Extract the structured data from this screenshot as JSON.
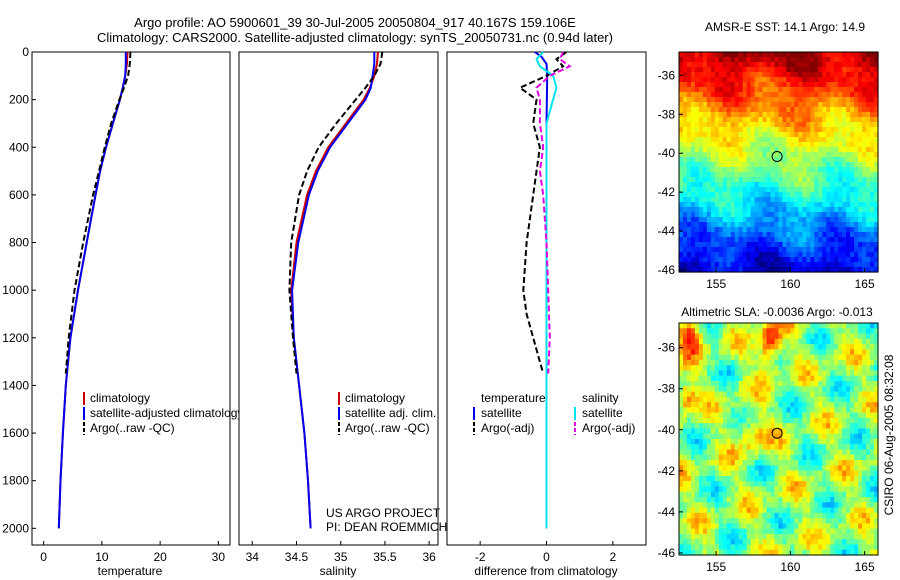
{
  "header": {
    "line1": "Argo profile: AO 5900601_39 30-Jul-2005 20050804_917 40.167S 159.106E",
    "line2": "Climatology: CARS2000. Satellite-adjusted climatology: synTS_20050731.nc (0.94d later)"
  },
  "side_label": "CSIRO 06-Aug-2005 08:32:08",
  "credit": {
    "line1": "US ARGO PROJECT",
    "line2": "PI: DEAN ROEMMICH"
  },
  "colors": {
    "climatology": "#cc0000",
    "satellite": "#0000ee",
    "argo": "#000000",
    "diff_temp_sat": "#0000ee",
    "diff_temp_argo": "#000000",
    "diff_sal_sat": "#00e5ee",
    "diff_sal_argo": "#e000e0"
  },
  "chart_data": [
    {
      "type": "line",
      "id": "temperature",
      "xlabel": "temperature",
      "ylim": [
        2070,
        0
      ],
      "xlim": [
        -2,
        32
      ],
      "xticks": [
        0,
        10,
        20,
        30
      ],
      "yticks": [
        0,
        200,
        400,
        600,
        800,
        1000,
        1200,
        1400,
        1600,
        1800,
        2000
      ],
      "legend": {
        "placement": "lower-right",
        "entries": [
          "climatology",
          "satellite-adjusted climatology",
          "Argo(..raw -QC)"
        ]
      },
      "series": [
        {
          "name": "climatology",
          "color": "#cc0000",
          "dash": false,
          "depth": [
            0,
            50,
            100,
            150,
            200,
            300,
            400,
            500,
            600,
            800,
            1000,
            1200,
            1400,
            1600,
            1800,
            2000
          ],
          "values": [
            14.4,
            14.3,
            14.0,
            13.6,
            13.1,
            11.9,
            10.7,
            9.7,
            8.9,
            7.4,
            5.9,
            4.6,
            3.8,
            3.3,
            2.9,
            2.6
          ]
        },
        {
          "name": "satellite-adjusted climatology",
          "color": "#0000ee",
          "dash": false,
          "depth": [
            0,
            50,
            100,
            150,
            200,
            300,
            400,
            500,
            600,
            800,
            1000,
            1200,
            1400,
            1600,
            1800,
            2000
          ],
          "values": [
            14.1,
            14.1,
            14.0,
            13.6,
            13.1,
            11.9,
            10.7,
            9.7,
            8.9,
            7.4,
            5.9,
            4.6,
            3.8,
            3.3,
            2.9,
            2.6
          ]
        },
        {
          "name": "Argo(..raw -QC)",
          "color": "#000000",
          "dash": true,
          "depth": [
            0,
            50,
            100,
            150,
            200,
            300,
            400,
            500,
            600,
            800,
            1000,
            1200,
            1350
          ],
          "values": [
            14.9,
            14.8,
            14.5,
            13.8,
            13.0,
            11.6,
            10.5,
            9.5,
            8.5,
            6.8,
            5.3,
            4.3,
            3.8
          ]
        }
      ]
    },
    {
      "type": "line",
      "id": "salinity",
      "xlabel": "salinity",
      "ylim": [
        2070,
        0
      ],
      "xlim": [
        33.85,
        36.1
      ],
      "xticks": [
        34,
        34.5,
        35,
        35.5,
        36
      ],
      "xticklabels": [
        "34",
        "34.5",
        "35",
        "35.5",
        "36"
      ],
      "legend": {
        "placement": "lower-right",
        "entries": [
          "climatology",
          "satellite adj. clim.",
          "Argo(..raw -QC)"
        ]
      },
      "series": [
        {
          "name": "climatology",
          "color": "#cc0000",
          "dash": false,
          "depth": [
            0,
            50,
            100,
            150,
            200,
            300,
            400,
            500,
            600,
            800,
            1000,
            1200,
            1400,
            1600,
            1800,
            2000
          ],
          "values": [
            35.42,
            35.41,
            35.38,
            35.33,
            35.26,
            35.06,
            34.86,
            34.72,
            34.62,
            34.5,
            34.44,
            34.47,
            34.53,
            34.59,
            34.63,
            34.66
          ]
        },
        {
          "name": "satellite adj. clim.",
          "color": "#0000ee",
          "dash": false,
          "depth": [
            0,
            50,
            100,
            150,
            200,
            300,
            400,
            500,
            600,
            800,
            1000,
            1200,
            1400,
            1600,
            1800,
            2000
          ],
          "values": [
            35.38,
            35.38,
            35.36,
            35.34,
            35.28,
            35.08,
            34.88,
            34.74,
            34.64,
            34.52,
            34.45,
            34.47,
            34.53,
            34.59,
            34.63,
            34.66
          ]
        },
        {
          "name": "Argo(..raw -QC)",
          "color": "#000000",
          "dash": true,
          "depth": [
            0,
            50,
            100,
            150,
            200,
            300,
            400,
            500,
            600,
            800,
            1000,
            1200,
            1350
          ],
          "values": [
            35.47,
            35.45,
            35.38,
            35.28,
            35.17,
            34.95,
            34.75,
            34.62,
            34.53,
            34.44,
            34.42,
            34.46,
            34.5
          ]
        }
      ]
    },
    {
      "type": "line",
      "id": "difference",
      "xlabel": "difference from climatology",
      "ylim": [
        2070,
        0
      ],
      "xlim": [
        -3.0,
        3.0
      ],
      "xticks": [
        -2,
        0,
        2
      ],
      "legend": {
        "placement": "lower-right",
        "headers": [
          "temperature",
          "salinity"
        ],
        "entries": [
          "satellite",
          "Argo(-adj)",
          "satellite",
          "Argo(-adj)"
        ]
      },
      "series": [
        {
          "name": "satellite",
          "group": "temperature",
          "color": "#0000ee",
          "dash": false,
          "depth": [
            0,
            20,
            50,
            100,
            300,
            500,
            1000,
            1500,
            2000
          ],
          "values": [
            -0.35,
            -0.15,
            0.0,
            0.02,
            0.0,
            0.0,
            0.0,
            0.0,
            0.0
          ]
        },
        {
          "name": "Argo(-adj)",
          "group": "temperature",
          "color": "#000000",
          "dash": true,
          "depth": [
            0,
            30,
            60,
            100,
            150,
            200,
            300,
            400,
            500,
            600,
            800,
            1000,
            1100,
            1200,
            1350
          ],
          "values": [
            0.6,
            0.3,
            0.5,
            0.0,
            -0.8,
            -0.3,
            -0.4,
            -0.2,
            -0.3,
            -0.4,
            -0.6,
            -0.7,
            -0.6,
            -0.4,
            -0.1
          ]
        },
        {
          "name": "satellite",
          "group": "salinity",
          "color": "#00e5ee",
          "dash": false,
          "depth": [
            0,
            30,
            60,
            100,
            150,
            200,
            300,
            500,
            1000,
            1500,
            2000
          ],
          "values": [
            -0.1,
            -0.3,
            -0.2,
            0.2,
            0.3,
            0.2,
            0.0,
            0.0,
            0.0,
            0.0,
            0.0
          ]
        },
        {
          "name": "Argo(-adj)",
          "group": "salinity",
          "color": "#e000e0",
          "dash": true,
          "depth": [
            0,
            30,
            60,
            100,
            150,
            200,
            300,
            400,
            500,
            600,
            800,
            1000,
            1200,
            1350
          ],
          "values": [
            0.5,
            0.4,
            0.7,
            0.1,
            -0.3,
            -0.2,
            -0.2,
            -0.1,
            -0.2,
            -0.1,
            0.0,
            0.05,
            0.1,
            0.05
          ]
        }
      ]
    },
    {
      "type": "heatmap",
      "id": "sst_map",
      "title": "AMSR-E SST: 14.1 Argo: 14.9",
      "xlim": [
        152.5,
        165.9
      ],
      "ylim": [
        -46.1,
        -34.8
      ],
      "xticks": [
        155,
        160,
        165
      ],
      "yticks": [
        -36,
        -38,
        -40,
        -42,
        -44,
        -46
      ],
      "marker": {
        "lon": 159.106,
        "lat": -40.167
      }
    },
    {
      "type": "heatmap",
      "id": "sla_map",
      "title": "Altimetric SLA: -0.0036 Argo: -0.013",
      "xlim": [
        152.5,
        165.9
      ],
      "ylim": [
        -46.1,
        -34.8
      ],
      "xticks": [
        155,
        160,
        165
      ],
      "yticks": [
        -36,
        -38,
        -40,
        -42,
        -44,
        -46
      ],
      "marker": {
        "lon": 159.106,
        "lat": -40.167
      }
    }
  ]
}
